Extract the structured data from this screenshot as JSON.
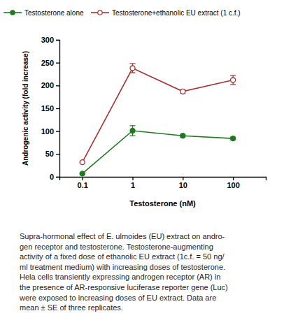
{
  "chart_data": {
    "type": "line",
    "x_label": "Testosterone (nM)",
    "y_label": "Androgenic activity (fold increase)",
    "x": [
      0.1,
      1,
      10,
      100
    ],
    "log": "x",
    "xlim": [
      0.035,
      450
    ],
    "xticks": [
      0.1,
      1,
      10,
      100
    ],
    "ylim": [
      0,
      300
    ],
    "yticks": [
      0,
      50,
      100,
      150,
      200,
      250,
      300
    ],
    "legend": "top",
    "series": [
      {
        "name": "Testosterone alone",
        "color": "#1f7a1f",
        "marker": "circle",
        "line_style": "solid",
        "values": [
          7,
          101,
          90,
          84
        ],
        "errors": [
          2,
          11,
          3,
          3
        ]
      },
      {
        "name": "Testosterone+ethanolic EU extract (1 c.f.)",
        "color": "#a83232",
        "marker": "open_circle",
        "line_style": "solid",
        "values": [
          32,
          238,
          187,
          212
        ],
        "errors": [
          2,
          10,
          4,
          10
        ]
      }
    ],
    "caption": [
      "Supra-hormonal effect of E. ulmoides (EU) extract on andro-",
      "gen receptor and testosterone. Testosterone-augmenting",
      "activity of a fixed dose of ethanolic EU extract (1c.f. = 50 ng/",
      "ml treatment medium) with increasing doses of testosterone.",
      "Hela cells transiently expressing androgen receptor (AR) in",
      "the presence of AR-responsive luciferase reporter gene (Luc)",
      "were exposed to increasing doses of EU extract. Data are",
      "mean ± SE of three replicates."
    ]
  }
}
